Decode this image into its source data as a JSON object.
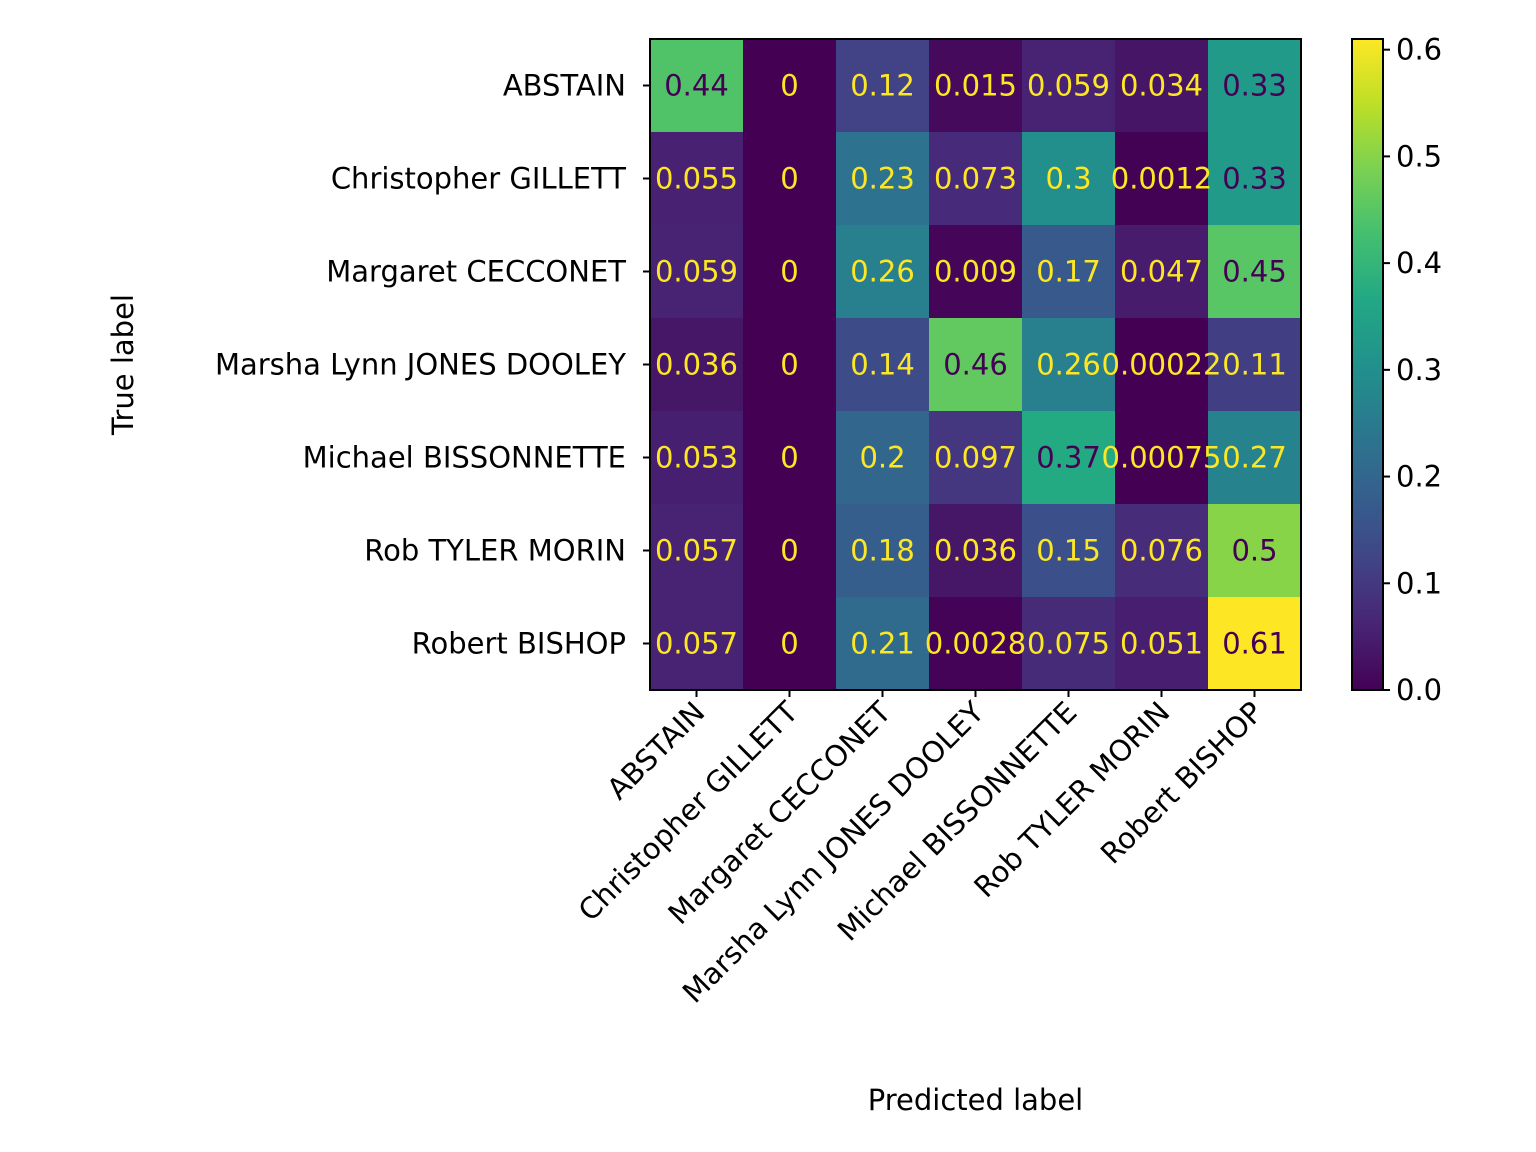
{
  "chart_data": {
    "type": "heatmap",
    "title": "",
    "xlabel": "Predicted label",
    "ylabel": "True label",
    "categories_x": [
      "ABSTAIN",
      "Christopher GILLETT",
      "Margaret CECCONET",
      "Marsha Lynn JONES DOOLEY",
      "Michael BISSONNETTE",
      "Rob TYLER MORIN",
      "Robert BISHOP"
    ],
    "categories_y": [
      "ABSTAIN",
      "Christopher GILLETT",
      "Margaret CECCONET",
      "Marsha Lynn JONES DOOLEY",
      "Michael BISSONNETTE",
      "Rob TYLER MORIN",
      "Robert BISHOP"
    ],
    "values": [
      [
        0.44,
        0,
        0.12,
        0.015,
        0.059,
        0.034,
        0.33
      ],
      [
        0.055,
        0,
        0.23,
        0.073,
        0.3,
        0.0012,
        0.33
      ],
      [
        0.059,
        0,
        0.26,
        0.009,
        0.17,
        0.047,
        0.45
      ],
      [
        0.036,
        0,
        0.14,
        0.46,
        0.26,
        0.00022,
        0.11
      ],
      [
        0.053,
        0,
        0.2,
        0.097,
        0.37,
        0.00075,
        0.27
      ],
      [
        0.057,
        0,
        0.18,
        0.036,
        0.15,
        0.076,
        0.5
      ],
      [
        0.057,
        0,
        0.21,
        0.0028,
        0.075,
        0.051,
        0.61
      ]
    ],
    "value_labels": [
      [
        "0.44",
        "0",
        "0.12",
        "0.015",
        "0.059",
        "0.034",
        "0.33"
      ],
      [
        "0.055",
        "0",
        "0.23",
        "0.073",
        "0.3",
        "0.0012",
        "0.33"
      ],
      [
        "0.059",
        "0",
        "0.26",
        "0.009",
        "0.17",
        "0.047",
        "0.45"
      ],
      [
        "0.036",
        "0",
        "0.14",
        "0.46",
        "0.26",
        "0.00022",
        "0.11"
      ],
      [
        "0.053",
        "0",
        "0.2",
        "0.097",
        "0.37",
        "0.00075",
        "0.27"
      ],
      [
        "0.057",
        "0",
        "0.18",
        "0.036",
        "0.15",
        "0.076",
        "0.5"
      ],
      [
        "0.057",
        "0",
        "0.21",
        "0.0028",
        "0.075",
        "0.051",
        "0.61"
      ]
    ],
    "colormap": "viridis",
    "colorbar": {
      "range": [
        0.0,
        0.61
      ],
      "ticks": [
        0.0,
        0.1,
        0.2,
        0.3,
        0.4,
        0.5,
        0.6
      ],
      "tick_labels": [
        "0.0",
        "0.1",
        "0.2",
        "0.3",
        "0.4",
        "0.5",
        "0.6"
      ]
    },
    "text_colors": {
      "light": "#fde725",
      "dark": "#440154"
    }
  }
}
